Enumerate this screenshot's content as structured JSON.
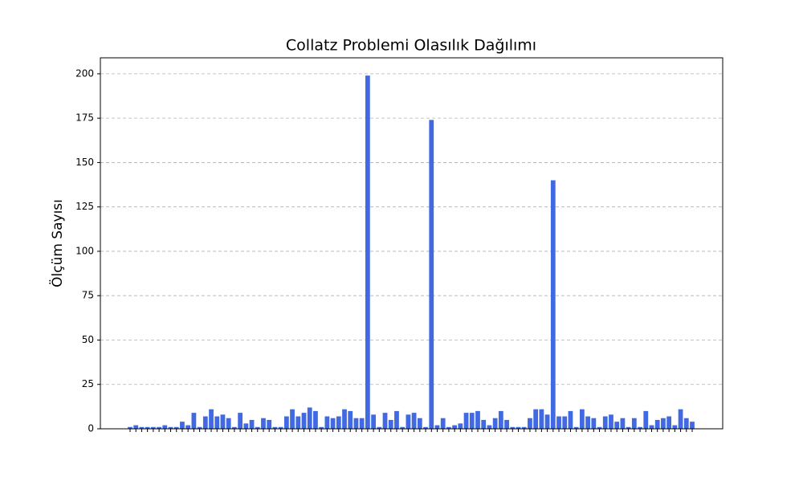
{
  "chart_data": {
    "type": "bar",
    "title": "Collatz Problemi Olasılık Dağılımı",
    "ylabel": "Ölçüm Sayısı",
    "categories": [
      null,
      null,
      null,
      null,
      null,
      null,
      null,
      null,
      null,
      null,
      null,
      null,
      null,
      null,
      null,
      null,
      null,
      null,
      null,
      null,
      null,
      null,
      null,
      null,
      null,
      null,
      null,
      null,
      null,
      null,
      null,
      null,
      null,
      null,
      null,
      null,
      null,
      null,
      null,
      null,
      null,
      null,
      null,
      null,
      null,
      null,
      null,
      null,
      null,
      null,
      null,
      null,
      null,
      null,
      null,
      null,
      null,
      null,
      null,
      null,
      null,
      null,
      null,
      null,
      null,
      null,
      null,
      null,
      null,
      null,
      null,
      null,
      null,
      null,
      null,
      null,
      null,
      null,
      null,
      null,
      null,
      null,
      null,
      null,
      null,
      null,
      null,
      null,
      null,
      null,
      null,
      null,
      null,
      null,
      null,
      null,
      null,
      null
    ],
    "values": [
      1,
      2,
      1,
      1,
      1,
      1,
      2,
      1,
      1,
      4,
      2,
      9,
      1,
      7,
      11,
      7,
      8,
      6,
      1,
      9,
      3,
      5,
      1,
      6,
      5,
      1,
      1,
      7,
      11,
      7,
      9,
      12,
      10,
      1,
      7,
      6,
      7,
      11,
      10,
      6,
      6,
      199,
      8,
      1,
      9,
      5,
      10,
      1,
      8,
      9,
      6,
      1,
      174,
      2,
      6,
      1,
      2,
      3,
      9,
      9,
      10,
      5,
      2,
      6,
      10,
      5,
      1,
      1,
      1,
      6,
      11,
      11,
      8,
      140,
      7,
      7,
      10,
      1,
      11,
      7,
      6,
      1,
      7,
      8,
      4,
      6,
      1,
      6,
      1,
      10,
      2,
      5,
      6,
      7,
      2,
      11,
      6,
      4
    ],
    "color": "#4169e1",
    "ylim": [
      0,
      209
    ],
    "yticks": [
      0,
      25,
      50,
      75,
      100,
      125,
      150,
      175,
      200
    ],
    "grid": true
  }
}
